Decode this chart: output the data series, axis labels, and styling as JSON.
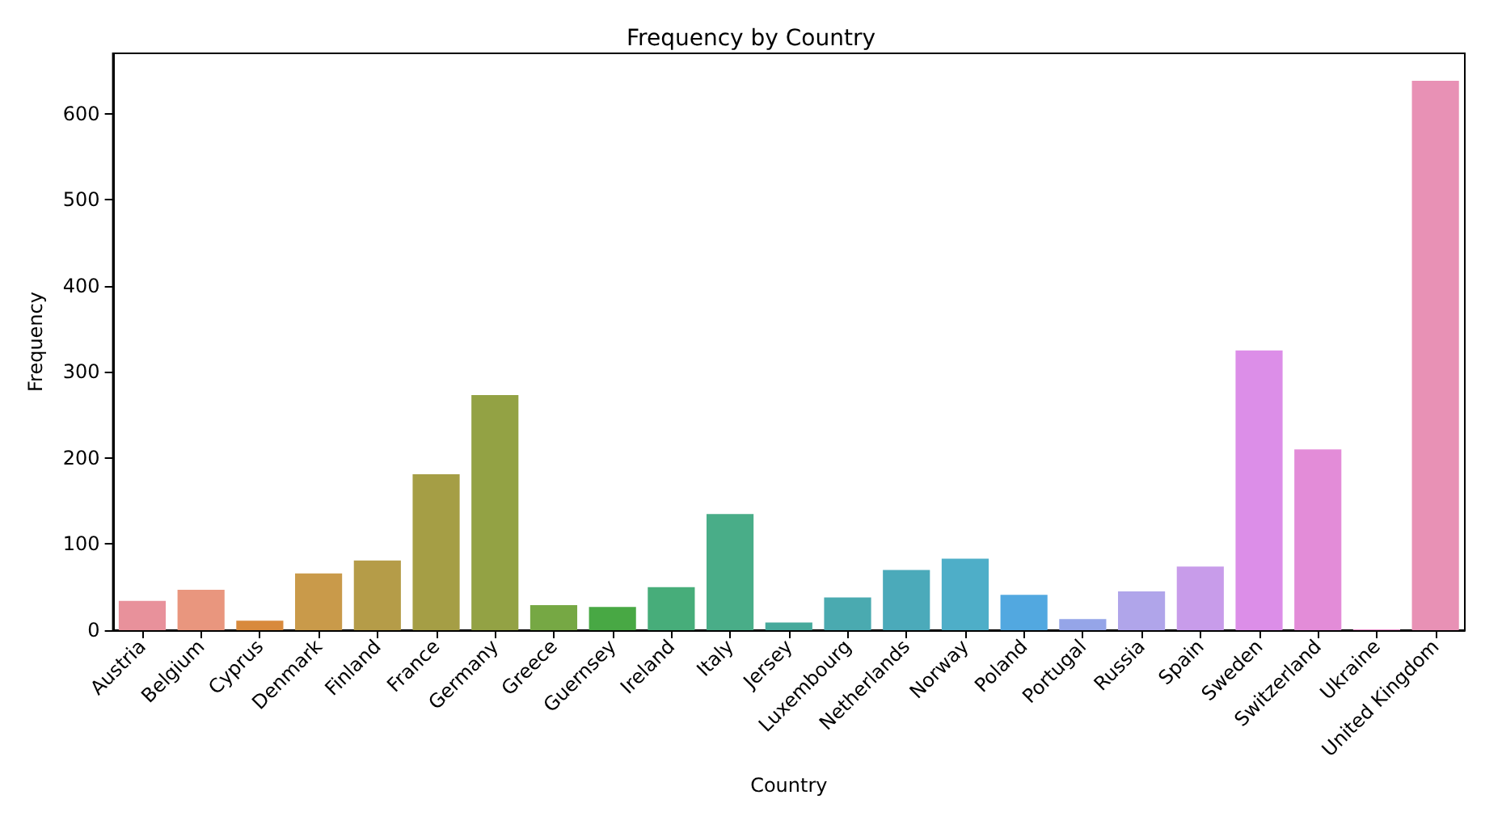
{
  "chart_data": {
    "type": "bar",
    "title": "Frequency by Country",
    "xlabel": "Country",
    "ylabel": "Frequency",
    "categories": [
      "Austria",
      "Belgium",
      "Cyprus",
      "Denmark",
      "Finland",
      "France",
      "Germany",
      "Greece",
      "Guernsey",
      "Ireland",
      "Italy",
      "Jersey",
      "Luxembourg",
      "Netherlands",
      "Norway",
      "Poland",
      "Portugal",
      "Russia",
      "Spain",
      "Sweden",
      "Switzerland",
      "Ukraine",
      "United Kingdom"
    ],
    "values": [
      34,
      47,
      11,
      66,
      81,
      181,
      273,
      29,
      27,
      50,
      135,
      9,
      38,
      70,
      83,
      41,
      13,
      45,
      74,
      325,
      210,
      1,
      638
    ],
    "colors": [
      "#e8919b",
      "#e9967e",
      "#d88a3c",
      "#c99a4a",
      "#b59c48",
      "#a59e45",
      "#93a244",
      "#76a844",
      "#48a844",
      "#47ad7a",
      "#49ad88",
      "#47aa9c",
      "#4aaab0",
      "#4baaba",
      "#4eaec8",
      "#52a8e0",
      "#95a5e8",
      "#b0a5ea",
      "#c89cea",
      "#dc8ee8",
      "#e38cd8",
      "#e68ec8",
      "#e891b5"
    ],
    "ylim": [
      0,
      670
    ],
    "yticks": [
      0,
      100,
      200,
      300,
      400,
      500,
      600
    ]
  }
}
